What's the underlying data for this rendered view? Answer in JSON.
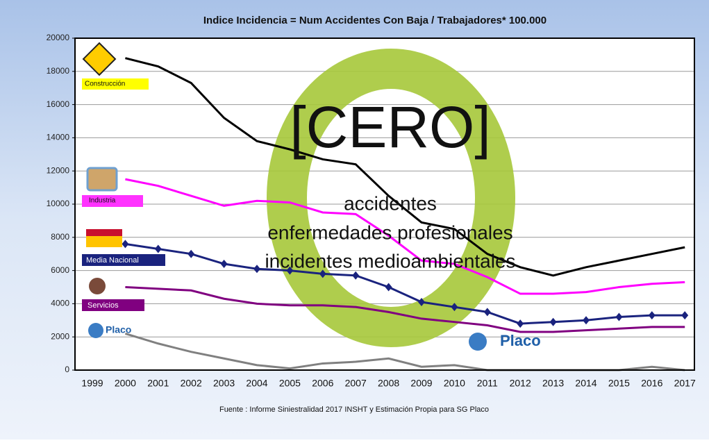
{
  "chart_data": {
    "type": "line",
    "title": "Indice Incidencia = Num Accidentes Con Baja / Trabajadores* 100.000",
    "footer": "Fuente : Informe Siniestralidad 2017 INSHT y Estimación Propia para SG Placo",
    "overlay": {
      "headline": "[CERO]",
      "lines": [
        "accidentes",
        "enfermedades profesionales",
        "incidentes medioambientales"
      ]
    },
    "categories": [
      "1999",
      "2000",
      "2001",
      "2002",
      "2003",
      "2004",
      "2005",
      "2006",
      "2007",
      "2008",
      "2009",
      "2010",
      "2011",
      "2012",
      "2013",
      "2014",
      "2015",
      "2016",
      "2017"
    ],
    "ylim": [
      0,
      20000
    ],
    "yticks": [
      0,
      2000,
      4000,
      6000,
      8000,
      10000,
      12000,
      14000,
      16000,
      18000,
      20000
    ],
    "grid": true,
    "series": [
      {
        "name": "Construcción",
        "color": "#000000",
        "values": [
          null,
          18800,
          18300,
          17300,
          15200,
          13800,
          13300,
          12700,
          12400,
          10500,
          8900,
          8500,
          7000,
          6200,
          5700,
          6200,
          6600,
          7000,
          7400
        ]
      },
      {
        "name": "Industria",
        "color": "#ff00ff",
        "values": [
          null,
          11500,
          11100,
          10500,
          9900,
          10200,
          10100,
          9500,
          9400,
          8100,
          6600,
          6400,
          5600,
          4600,
          4600,
          4700,
          5000,
          5200,
          5300
        ]
      },
      {
        "name": "Media Nacional",
        "color": "#1a237e",
        "marker": "diamond",
        "values": [
          null,
          7600,
          7300,
          7000,
          6400,
          6100,
          6000,
          5800,
          5700,
          5000,
          4100,
          3800,
          3500,
          2800,
          2900,
          3000,
          3200,
          3300,
          3300
        ]
      },
      {
        "name": "Servicios",
        "color": "#800080",
        "values": [
          null,
          5000,
          4900,
          4800,
          4300,
          4000,
          3900,
          3900,
          3800,
          3500,
          3100,
          2900,
          2700,
          2300,
          2300,
          2400,
          2500,
          2600,
          2600
        ]
      },
      {
        "name": "Placo",
        "color": "#808080",
        "values": [
          null,
          2200,
          1600,
          1100,
          700,
          300,
          100,
          400,
          500,
          700,
          200,
          300,
          0,
          0,
          0,
          0,
          0,
          200,
          0
        ]
      }
    ]
  }
}
